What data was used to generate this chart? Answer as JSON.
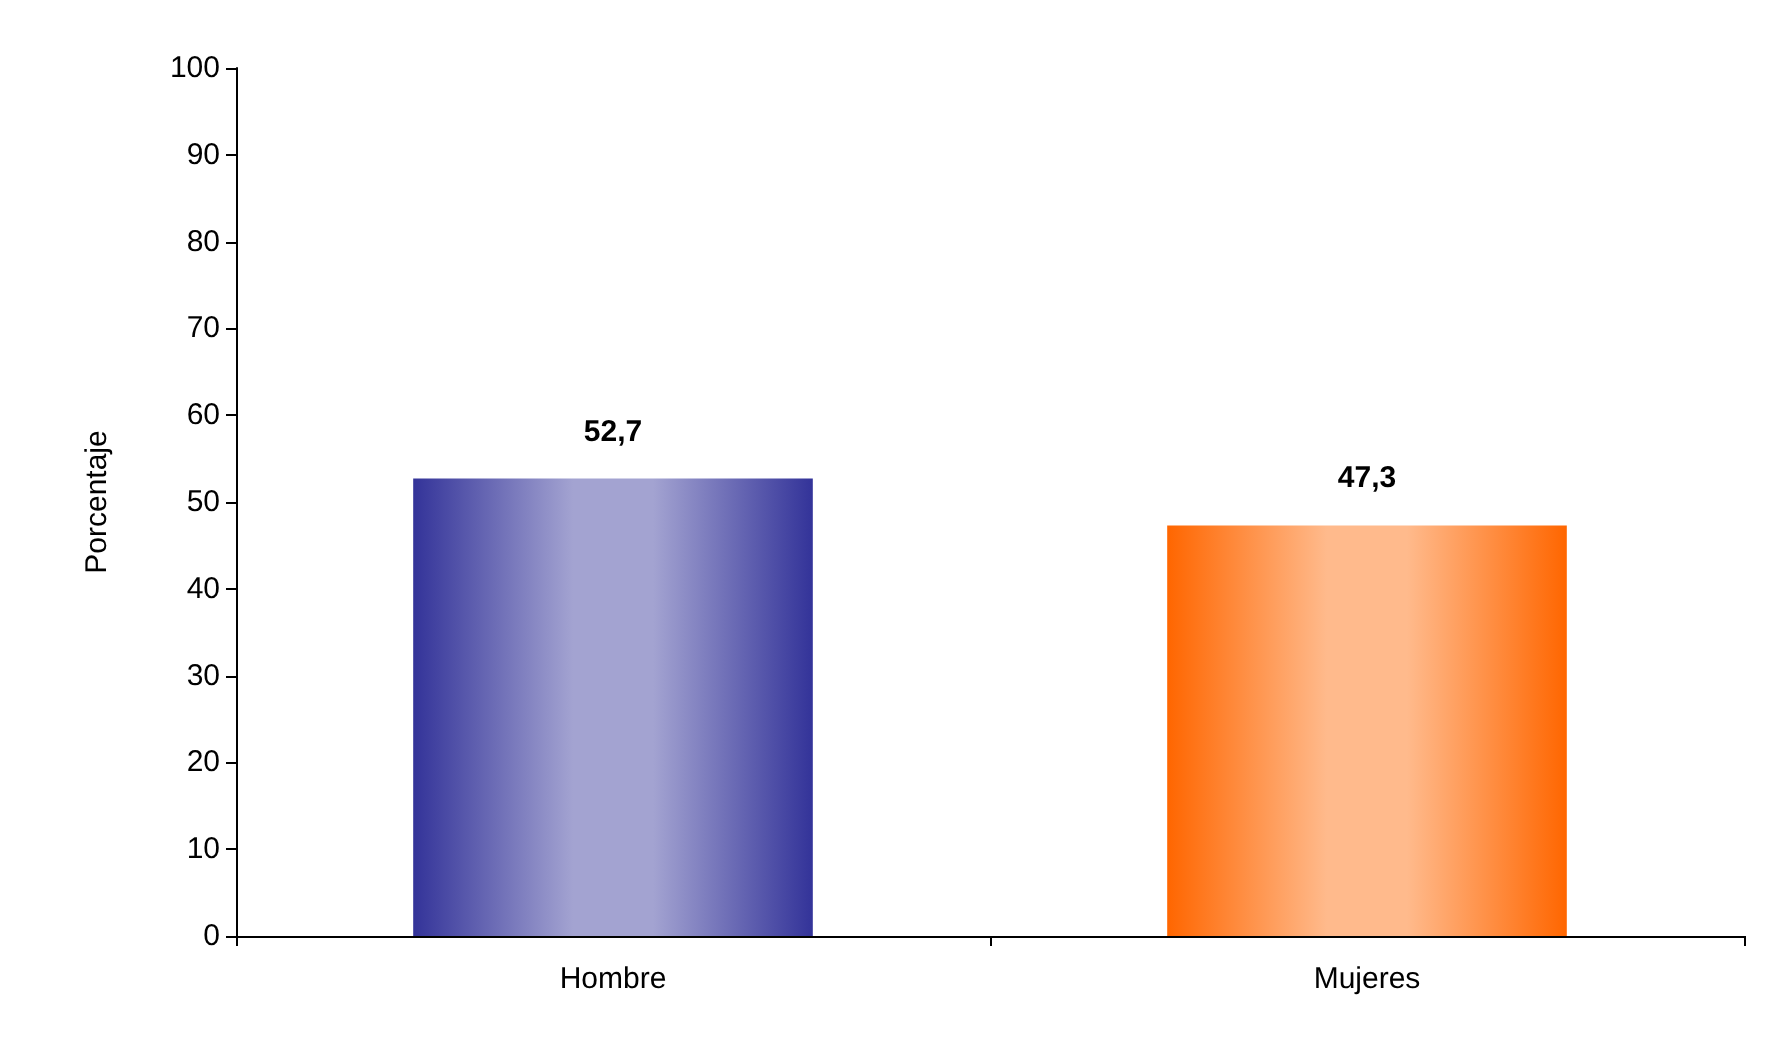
{
  "chart_data": {
    "type": "bar",
    "ylabel": "Porcentaje",
    "categories": [
      "Hombre",
      "Mujeres"
    ],
    "values": [
      52.7,
      47.3
    ],
    "colors": [
      "#333399",
      "#ff6600"
    ],
    "value_labels": [
      "52,7",
      "47,3"
    ],
    "ylim": [
      0,
      100
    ],
    "yticks": [
      0,
      10,
      20,
      30,
      40,
      50,
      60,
      70,
      80,
      90,
      100
    ],
    "grid": false
  }
}
